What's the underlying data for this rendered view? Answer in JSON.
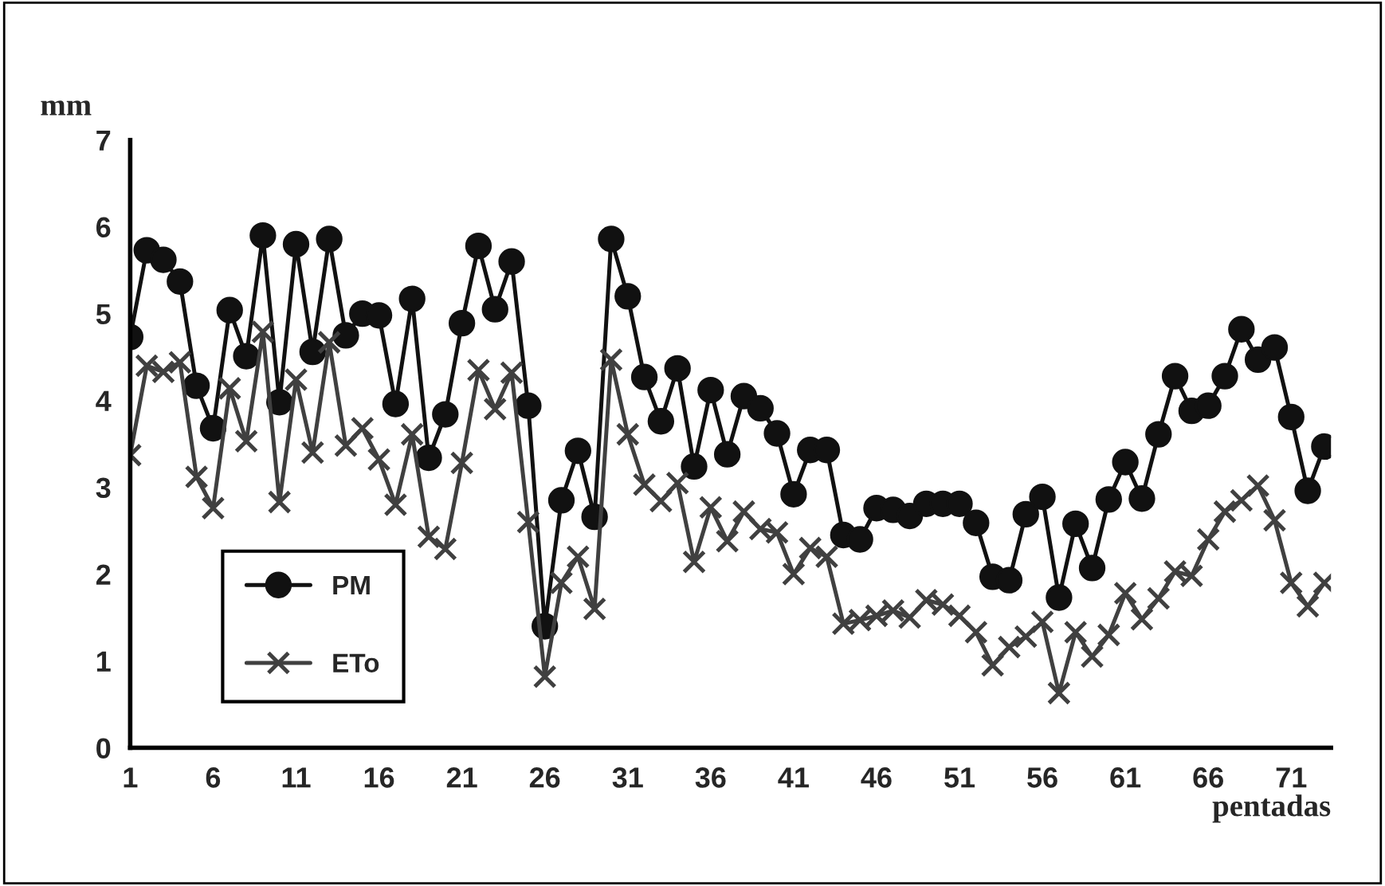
{
  "chart_data": {
    "type": "line",
    "xlabel": "pentadas",
    "ylabel": "mm",
    "x": [
      1,
      2,
      3,
      4,
      5,
      6,
      7,
      8,
      9,
      10,
      11,
      12,
      13,
      14,
      15,
      16,
      17,
      18,
      19,
      20,
      21,
      22,
      23,
      24,
      25,
      26,
      27,
      28,
      29,
      30,
      31,
      32,
      33,
      34,
      35,
      36,
      37,
      38,
      39,
      40,
      41,
      42,
      43,
      44,
      45,
      46,
      47,
      48,
      49,
      50,
      51,
      52,
      53,
      54,
      55,
      56,
      57,
      58,
      59,
      60,
      61,
      62,
      63,
      64,
      65,
      66,
      67,
      68,
      69,
      70,
      71,
      72,
      73
    ],
    "series": [
      {
        "name": "PM",
        "color": "#111111",
        "marker": "circle",
        "values": [
          4.73,
          5.73,
          5.62,
          5.37,
          4.17,
          3.68,
          5.04,
          4.51,
          5.9,
          3.98,
          5.8,
          4.56,
          5.86,
          4.75,
          5.0,
          4.98,
          3.96,
          5.17,
          3.34,
          3.84,
          4.89,
          5.78,
          5.05,
          5.6,
          3.94,
          1.4,
          2.85,
          3.42,
          2.66,
          5.86,
          5.2,
          4.27,
          3.76,
          4.37,
          3.24,
          4.12,
          3.38,
          4.05,
          3.91,
          3.62,
          2.92,
          3.43,
          3.43,
          2.45,
          2.4,
          2.76,
          2.74,
          2.67,
          2.81,
          2.81,
          2.81,
          2.59,
          1.97,
          1.93,
          2.69,
          2.89,
          1.73,
          2.58,
          2.07,
          2.86,
          3.29,
          2.87,
          3.61,
          4.28,
          3.88,
          3.94,
          4.28,
          4.82,
          4.47,
          4.61,
          3.81,
          2.96,
          3.47
        ]
      },
      {
        "name": "ETo",
        "color": "#404040",
        "marker": "cross",
        "values": [
          3.37,
          4.4,
          4.33,
          4.44,
          3.12,
          2.76,
          4.14,
          3.53,
          4.79,
          2.83,
          4.24,
          3.4,
          4.67,
          3.48,
          3.68,
          3.32,
          2.8,
          3.61,
          2.43,
          2.29,
          3.28,
          4.35,
          3.9,
          4.32,
          2.6,
          0.82,
          1.9,
          2.2,
          1.6,
          4.47,
          3.61,
          3.03,
          2.84,
          3.05,
          2.14,
          2.77,
          2.38,
          2.72,
          2.52,
          2.48,
          2.0,
          2.3,
          2.2,
          1.43,
          1.47,
          1.52,
          1.58,
          1.5,
          1.7,
          1.65,
          1.52,
          1.33,
          0.95,
          1.16,
          1.28,
          1.45,
          0.63,
          1.33,
          1.05,
          1.3,
          1.78,
          1.48,
          1.72,
          2.03,
          1.98,
          2.4,
          2.72,
          2.85,
          3.02,
          2.62,
          1.9,
          1.63,
          1.9
        ]
      }
    ],
    "xlim": [
      1,
      73.4
    ],
    "xticks": [
      1,
      6,
      11,
      16,
      21,
      26,
      31,
      36,
      41,
      46,
      51,
      56,
      61,
      66,
      71
    ],
    "ylim": [
      0,
      7
    ],
    "yticks": [
      0,
      1,
      2,
      3,
      4,
      5,
      6,
      7
    ],
    "grid": false,
    "legend": "bottom left",
    "line_style": "solid"
  }
}
